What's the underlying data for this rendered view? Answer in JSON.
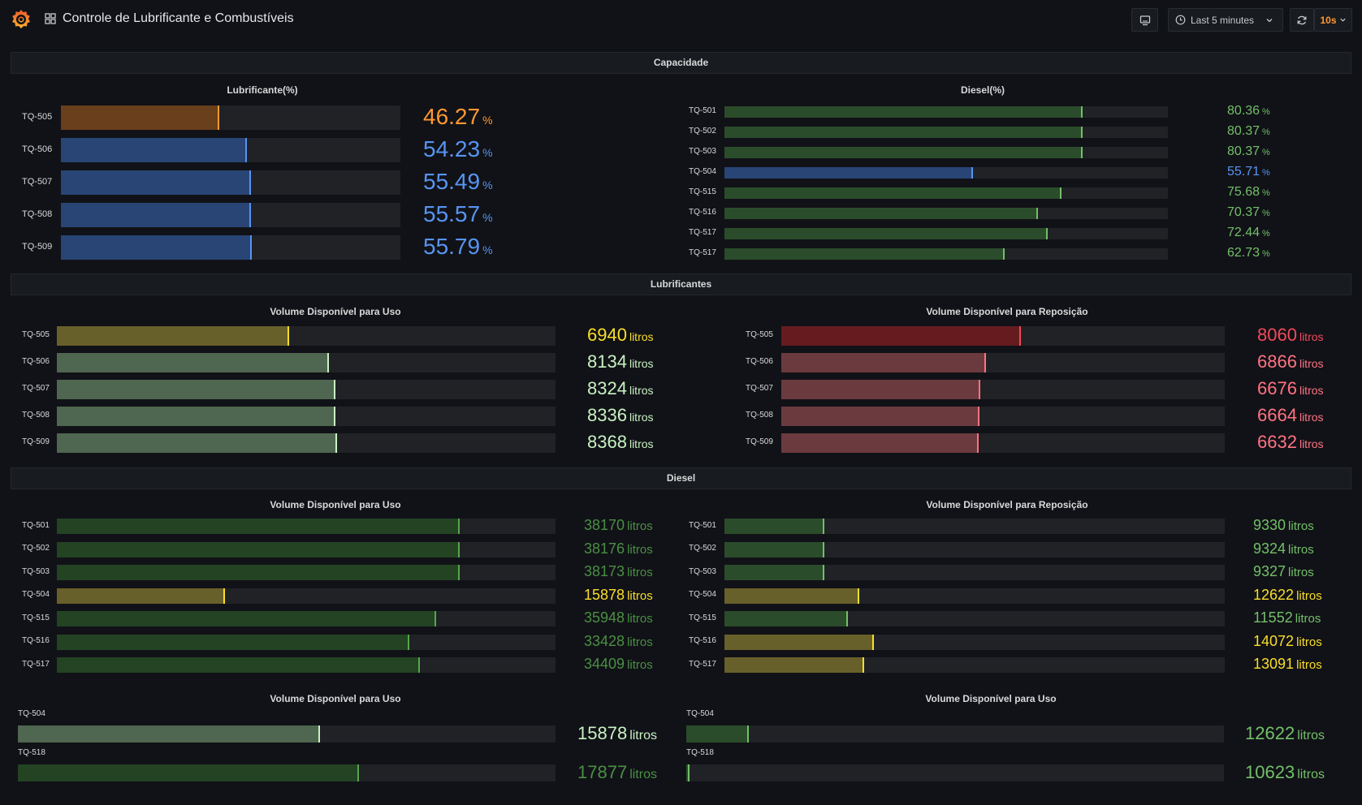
{
  "header": {
    "title": "Controle de Lubrificante e Combustíveis",
    "time_range": "Last 5 minutes",
    "refresh_interval": "10s"
  },
  "icons": {
    "logo": "grafana-logo-icon",
    "dashboards": "dashboard-grid-icon",
    "tv": "monitor-icon",
    "clock": "clock-icon",
    "chevron": "chevron-down-icon",
    "refresh": "refresh-icon"
  },
  "colors": {
    "orange": "#ff9830",
    "blue": "#5794f2",
    "green": "#73bf69",
    "light_green": "#c8f2c2",
    "yellow": "#fade2a",
    "red": "#f2495c",
    "pink": "#ff7383"
  },
  "rows": {
    "capacidade": "Capacidade",
    "lubrificantes": "Lubrificantes",
    "diesel": "Diesel"
  },
  "panels": {
    "lub_pct": {
      "title": "Lubrificante(%)",
      "unit": "%",
      "items": [
        {
          "label": "TQ-505",
          "value": "46.27",
          "pct": 46.27,
          "color": "orange"
        },
        {
          "label": "TQ-506",
          "value": "54.23",
          "pct": 54.23,
          "color": "blue"
        },
        {
          "label": "TQ-507",
          "value": "55.49",
          "pct": 55.49,
          "color": "blue"
        },
        {
          "label": "TQ-508",
          "value": "55.57",
          "pct": 55.57,
          "color": "blue"
        },
        {
          "label": "TQ-509",
          "value": "55.79",
          "pct": 55.79,
          "color": "blue"
        }
      ]
    },
    "diesel_pct": {
      "title": "Diesel(%)",
      "unit": "%",
      "items": [
        {
          "label": "TQ-501",
          "value": "80.36",
          "pct": 80.36,
          "color": "green"
        },
        {
          "label": "TQ-502",
          "value": "80.37",
          "pct": 80.37,
          "color": "green"
        },
        {
          "label": "TQ-503",
          "value": "80.37",
          "pct": 80.37,
          "color": "green"
        },
        {
          "label": "TQ-504",
          "value": "55.71",
          "pct": 55.71,
          "color": "blue"
        },
        {
          "label": "TQ-515",
          "value": "75.68",
          "pct": 75.68,
          "color": "green"
        },
        {
          "label": "TQ-516",
          "value": "70.37",
          "pct": 70.37,
          "color": "green"
        },
        {
          "label": "TQ-517",
          "value": "72.44",
          "pct": 72.44,
          "color": "green"
        },
        {
          "label": "TQ-517",
          "value": "62.73",
          "pct": 62.73,
          "color": "green"
        }
      ]
    },
    "lub_uso": {
      "title": "Volume Disponível para Uso",
      "unit": "litros",
      "items": [
        {
          "label": "TQ-505",
          "value": "6940",
          "pct": 46.3,
          "color": "yellow"
        },
        {
          "label": "TQ-506",
          "value": "8134",
          "pct": 54.2,
          "color": "light_green"
        },
        {
          "label": "TQ-507",
          "value": "8324",
          "pct": 55.5,
          "color": "light_green"
        },
        {
          "label": "TQ-508",
          "value": "8336",
          "pct": 55.6,
          "color": "light_green"
        },
        {
          "label": "TQ-509",
          "value": "8368",
          "pct": 55.8,
          "color": "light_green"
        }
      ]
    },
    "lub_repo": {
      "title": "Volume Disponível para Reposição",
      "unit": "litros",
      "items": [
        {
          "label": "TQ-505",
          "value": "8060",
          "pct": 53.7,
          "color": "red"
        },
        {
          "label": "TQ-506",
          "value": "6866",
          "pct": 45.8,
          "color": "pink"
        },
        {
          "label": "TQ-507",
          "value": "6676",
          "pct": 44.5,
          "color": "pink"
        },
        {
          "label": "TQ-508",
          "value": "6664",
          "pct": 44.4,
          "color": "pink"
        },
        {
          "label": "TQ-509",
          "value": "6632",
          "pct": 44.2,
          "color": "pink"
        }
      ]
    },
    "diesel_uso": {
      "title": "Volume Disponível para Uso",
      "unit": "litros",
      "items": [
        {
          "label": "TQ-501",
          "value": "38170",
          "pct": 80.4,
          "color": "green"
        },
        {
          "label": "TQ-502",
          "value": "38176",
          "pct": 80.4,
          "color": "green"
        },
        {
          "label": "TQ-503",
          "value": "38173",
          "pct": 80.4,
          "color": "green"
        },
        {
          "label": "TQ-504",
          "value": "15878",
          "pct": 33.4,
          "color": "yellow"
        },
        {
          "label": "TQ-515",
          "value": "35948",
          "pct": 75.7,
          "color": "green"
        },
        {
          "label": "TQ-516",
          "value": "33428",
          "pct": 70.4,
          "color": "green"
        },
        {
          "label": "TQ-517",
          "value": "34409",
          "pct": 72.4,
          "color": "green"
        }
      ]
    },
    "diesel_repo": {
      "title": "Volume Disponível para Reposição",
      "unit": "litros",
      "items": [
        {
          "label": "TQ-501",
          "value": "9330",
          "pct": 19.6,
          "color": "green"
        },
        {
          "label": "TQ-502",
          "value": "9324",
          "pct": 19.6,
          "color": "green"
        },
        {
          "label": "TQ-503",
          "value": "9327",
          "pct": 19.6,
          "color": "green"
        },
        {
          "label": "TQ-504",
          "value": "12622",
          "pct": 26.6,
          "color": "yellow"
        },
        {
          "label": "TQ-515",
          "value": "11552",
          "pct": 24.3,
          "color": "green"
        },
        {
          "label": "TQ-516",
          "value": "14072",
          "pct": 29.6,
          "color": "yellow"
        },
        {
          "label": "TQ-517",
          "value": "13091",
          "pct": 27.6,
          "color": "yellow"
        }
      ]
    },
    "extra_left": {
      "title": "Volume Disponível para Uso",
      "unit": "litros",
      "items": [
        {
          "label": "TQ-504",
          "value": "15878",
          "pct": 55.9,
          "color": "light_green"
        },
        {
          "label": "TQ-518",
          "value": "17877",
          "pct": 63.2,
          "color": "green"
        }
      ]
    },
    "extra_right": {
      "title": "Volume Disponível para Uso",
      "unit": "litros",
      "items": [
        {
          "label": "TQ-504",
          "value": "12622",
          "pct": 11.3,
          "color": "green"
        },
        {
          "label": "TQ-518",
          "value": "10623",
          "pct": 0.3,
          "color": "green"
        }
      ]
    }
  }
}
